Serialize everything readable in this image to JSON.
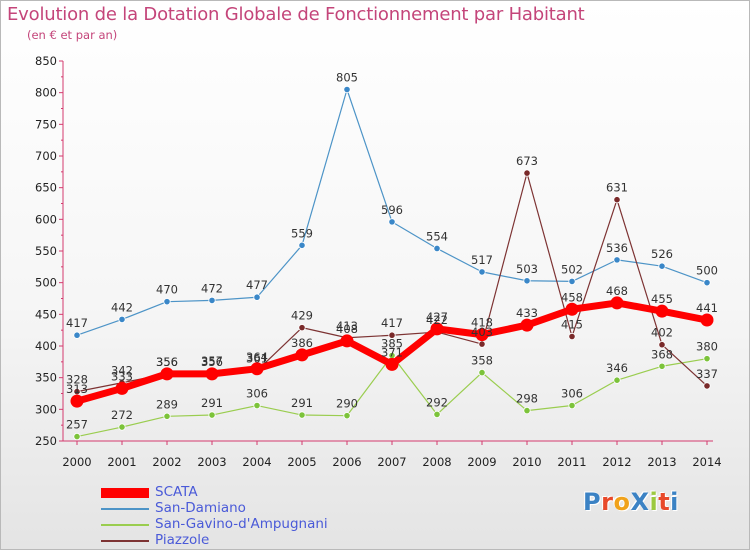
{
  "header": {
    "title": "Evolution de la Dotation Globale de Fonctionnement par Habitant",
    "subtitle": "(en € et par an)"
  },
  "logo": {
    "text": "ProXiti",
    "colors": [
      "#3b82c4",
      "#e8492a",
      "#f0a21b",
      "#3b82c4",
      "#9cc93f",
      "#e8492a",
      "#3b82c4"
    ]
  },
  "chart_data": {
    "type": "line",
    "title": "Evolution de la Dotation Globale de Fonctionnement par Habitant",
    "subtitle": "(en € et par an)",
    "xlabel": "",
    "ylabel": "",
    "ylim": [
      250,
      850
    ],
    "yticks": [
      250,
      300,
      350,
      400,
      450,
      500,
      550,
      600,
      650,
      700,
      750,
      800,
      850
    ],
    "x": [
      "2000",
      "2001",
      "2002",
      "2003",
      "2004",
      "2005",
      "2006",
      "2007",
      "2008",
      "2009",
      "2010",
      "2011",
      "2012",
      "2013",
      "2014"
    ],
    "grid": false,
    "legend_position": "bottom-left",
    "series": [
      {
        "name": "San-Damiano",
        "color": "#4d94c7",
        "width": 1.2,
        "marker_fill": "#3a87c8",
        "marker_r": 3.2,
        "values": [
          417,
          442,
          470,
          472,
          477,
          559,
          805,
          596,
          554,
          517,
          503,
          502,
          536,
          526,
          500
        ]
      },
      {
        "name": "San-Gavino-d'Ampugnani",
        "color": "#9acd4f",
        "width": 1.2,
        "marker_fill": "#7cc33a",
        "marker_r": 3.2,
        "values": [
          257,
          272,
          289,
          291,
          306,
          291,
          290,
          385,
          292,
          358,
          298,
          306,
          346,
          368,
          380
        ]
      },
      {
        "name": "Piazzole",
        "color": "#7d3333",
        "width": 1.2,
        "marker_fill": "#7a2a2a",
        "marker_r": 3.2,
        "values": [
          328,
          342,
          356,
          357,
          361,
          429,
          413,
          417,
          422,
          403,
          673,
          415,
          631,
          402,
          337
        ]
      },
      {
        "name": "SCATA",
        "color": "#ff0000",
        "width": 7,
        "marker_fill": "#ff0000",
        "marker_r": 6.5,
        "values": [
          313,
          333,
          356,
          356,
          364,
          386,
          408,
          371,
          427,
          418,
          433,
          458,
          468,
          455,
          441
        ]
      }
    ],
    "legend_order": [
      "SCATA",
      "San-Damiano",
      "San-Gavino-d'Ampugnani",
      "Piazzole"
    ]
  }
}
